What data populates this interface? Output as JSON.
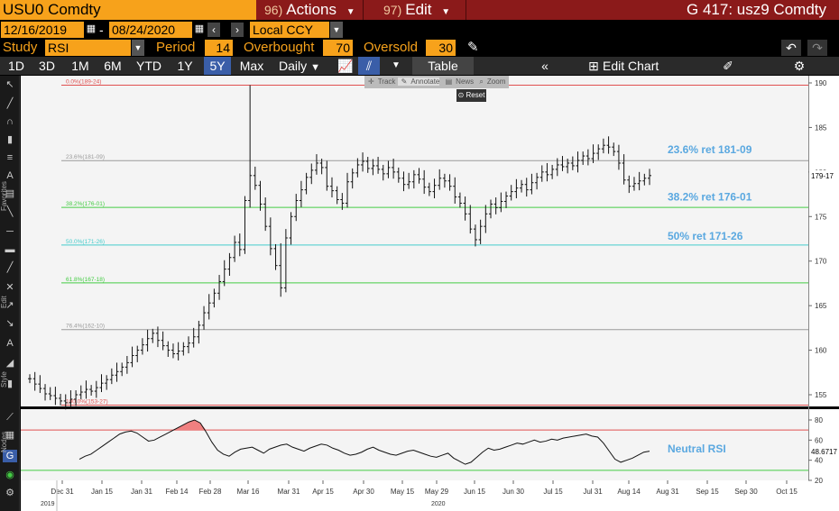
{
  "header": {
    "security": "USU0 Comdty",
    "actions_num": "96)",
    "actions_label": "Actions",
    "edit_num": "97)",
    "edit_label": "Edit",
    "screen_title": "G 417: usz9 Comdty"
  },
  "dates": {
    "start": "12/16/2019",
    "dash": "-",
    "end": "08/24/2020",
    "currency": "Local CCY"
  },
  "study": {
    "study_label": "Study",
    "study_value": "RSI",
    "period_label": "Period",
    "period_value": "14",
    "overbought_label": "Overbought",
    "overbought_value": "70",
    "oversold_label": "Oversold",
    "oversold_value": "30"
  },
  "toolbar": {
    "ranges": [
      "1D",
      "3D",
      "1M",
      "6M",
      "YTD",
      "1Y",
      "5Y",
      "Max"
    ],
    "active_range": "5Y",
    "frequency": "Daily",
    "table_label": "Table",
    "edit_chart_label": "Edit Chart"
  },
  "left_panel": {
    "favorites_label": "Favorites",
    "edit_label": "Edit",
    "style_label": "Style",
    "nodes_label": "Nodes"
  },
  "mini_tools": {
    "track": "Track",
    "annotate": "Annotate",
    "news": "News",
    "zoom": "Zoom",
    "reset": "Reset"
  },
  "colors": {
    "bloomberg_orange": "#f7a21b",
    "title_red": "#8b1a1a",
    "fib_red": "#e05050",
    "fib_green": "#44cc44",
    "fib_cyan": "#44cccc",
    "fib_gray": "#999999",
    "annot_blue": "#5aa8e0",
    "active_blue": "#3a5ea8"
  },
  "chart_data": {
    "type": "bar",
    "price_axis": {
      "ticks": [
        "190",
        "185",
        "180",
        "175",
        "170",
        "165",
        "160",
        "155"
      ],
      "ylim": [
        153,
        191
      ]
    },
    "last_price_label": "179-17",
    "fib_levels": [
      {
        "label": "0.0%(189-24)",
        "value": 189.75,
        "color": "#e05050"
      },
      {
        "label": "23.6%(181-09)",
        "value": 181.28,
        "color": "#999999"
      },
      {
        "label": "38.2%(176-01)",
        "value": 176.03,
        "color": "#44cc44"
      },
      {
        "label": "50.0%(171-26)",
        "value": 171.81,
        "color": "#44cccc"
      },
      {
        "label": "61.8%(167-18)",
        "value": 167.56,
        "color": "#44cc44"
      },
      {
        "label": "76.4%(162-10)",
        "value": 162.31,
        "color": "#999999"
      },
      {
        "label": "100.0%(153-27)",
        "value": 153.84,
        "color": "#e05050"
      }
    ],
    "annotations": [
      {
        "text": "23.6% ret 181-09",
        "value": 182.3
      },
      {
        "text": "38.2% ret 176-01",
        "value": 177.0
      },
      {
        "text": "50% ret 171-26",
        "value": 172.6
      }
    ],
    "rsi": {
      "ticks": [
        "80",
        "60",
        "40",
        "20"
      ],
      "overbought": 70,
      "oversold": 30,
      "last_label": "48.6717",
      "annotation": "Neutral RSI"
    },
    "x_axis": {
      "ticks": [
        "Dec 31",
        "Jan 15",
        "Jan 31",
        "Feb 14",
        "Feb 28",
        "Mar 16",
        "Mar 31",
        "Apr 15",
        "Apr 30",
        "May 15",
        "May 29",
        "Jun 15",
        "Jun 30",
        "Jul 15",
        "Jul 31",
        "Aug 14",
        "Aug 31",
        "Sep 15",
        "Sep 30",
        "Oct 15"
      ],
      "years": [
        "2019",
        "2020"
      ]
    },
    "series": [
      {
        "values": [
          156.8,
          156.2,
          155.7,
          155.1,
          154.9,
          154.6,
          154.3,
          154.1,
          154.5,
          155.0,
          155.3,
          155.6,
          155.4,
          155.8,
          156.3,
          156.7,
          157.2,
          157.6,
          158.1,
          158.6,
          159.4,
          160.0,
          160.6,
          161.3,
          161.9,
          161.1,
          160.5,
          160.0,
          159.6,
          159.9,
          160.4,
          160.8,
          161.5,
          162.8,
          164.2,
          165.3,
          166.4,
          167.7,
          169.1,
          170.4,
          172.1,
          171.3,
          176.8,
          179.6,
          178.5,
          176.4,
          173.9,
          171.4,
          169.5,
          167.0,
          172.6,
          175.0,
          176.8,
          178.0,
          179.4,
          180.2,
          181.0,
          180.5,
          178.4,
          177.9,
          176.9,
          176.5,
          178.9,
          179.9,
          180.8,
          181.2,
          180.4,
          180.7,
          180.3,
          179.8,
          180.5,
          180.0,
          179.3,
          178.6,
          178.9,
          179.7,
          179.2,
          178.3,
          177.8,
          178.5,
          179.3,
          179.0,
          178.4,
          177.2,
          176.5,
          175.3,
          173.6,
          172.4,
          173.9,
          175.3,
          176.4,
          176.0,
          176.7,
          177.3,
          177.8,
          178.2,
          178.6,
          178.0,
          178.8,
          179.4,
          180.0,
          179.7,
          180.3,
          180.8,
          180.6,
          181.0,
          180.7,
          181.3,
          181.8,
          181.5,
          182.1,
          182.6,
          183.0,
          182.8,
          182.3,
          181.0,
          179.1,
          178.4,
          178.7,
          179.0,
          179.3,
          179.6
        ]
      },
      {
        "name": "RSI",
        "values": [
          41,
          44,
          46,
          50,
          54,
          58,
          62,
          66,
          68,
          69,
          67,
          63,
          59,
          60,
          63,
          66,
          69,
          72,
          75,
          78,
          80,
          77,
          68,
          58,
          50,
          46,
          44,
          48,
          51,
          52,
          53,
          50,
          47,
          51,
          53,
          55,
          56,
          53,
          51,
          49,
          52,
          54,
          56,
          55,
          52,
          50,
          47,
          45,
          46,
          48,
          51,
          53,
          50,
          48,
          46,
          45,
          47,
          49,
          50,
          48,
          46,
          44,
          43,
          45,
          47,
          42,
          39,
          36,
          38,
          43,
          48,
          52,
          50,
          51,
          53,
          55,
          57,
          56,
          58,
          60,
          58,
          59,
          61,
          60,
          62,
          63,
          64,
          65,
          66,
          64,
          63,
          57,
          49,
          41,
          38,
          40,
          42,
          45,
          48,
          49
        ]
      }
    ]
  }
}
